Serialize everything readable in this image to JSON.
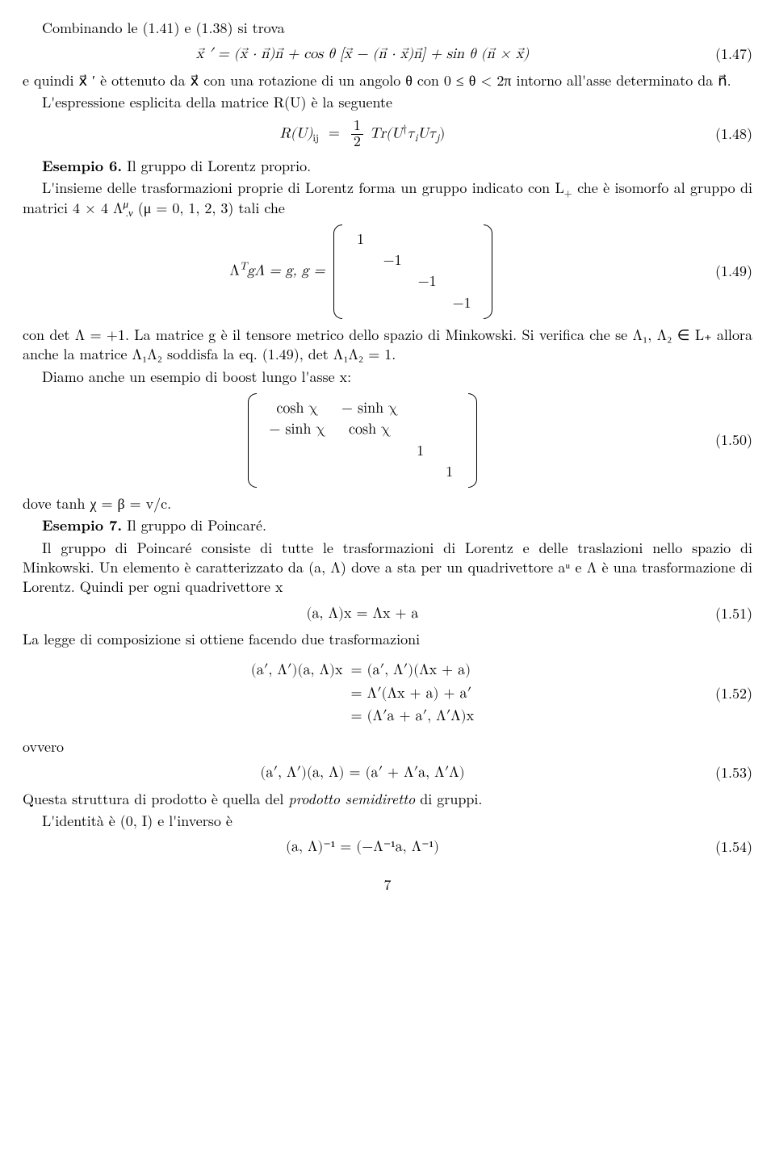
{
  "p1": "Combinando le (1.41) e (1.38) si trova",
  "eq147": "x⃗ ′ = (x⃗ · n⃗)n⃗ + cos θ [x⃗ − (n⃗ · x⃗)n⃗] + sin θ (n⃗ × x⃗)",
  "eq147n": "(1.47)",
  "p2": "e quindi x⃗ ′ è ottenuto da x⃗ con una rotazione di un angolo θ con 0 ≤ θ < 2π intorno all'asse determinato da n⃗.",
  "p3": "L'espressione esplicita della matrice R(U) è la seguente",
  "eq148_lhs": "R(U)",
  "eq148_sub": "ij",
  "eq148_rhs_a": "Tr(U",
  "eq148_rhs_b": "τ",
  "eq148_rhs_c": "Uτ",
  "eq148_frac_num": "1",
  "eq148_frac_den": "2",
  "eq148n": "(1.48)",
  "es6_label": "Esempio 6.",
  "es6_text": " Il gruppo di Lorentz proprio.",
  "p4a": "L'insieme delle trasformazioni proprie di Lorentz forma un gruppo indicato con L",
  "p4b": " che è isomorfo al gruppo di matrici 4 × 4 Λ",
  "p4c": " (μ = 0, 1, 2, 3) tali che",
  "eq149_pre": "Λ",
  "eq149_pre2": "gΛ = g,   g = ",
  "eq149n": "(1.49)",
  "g_diag": [
    "1",
    "−1",
    "−1",
    "−1"
  ],
  "p5": "con det Λ = +1. La matrice g è il tensore metrico dello spazio di Minkowski. Si verifica che se Λ₁, Λ₂ ∈ L₊ allora anche la matrice Λ₁Λ₂ soddisfa la eq. (1.49), det Λ₁Λ₂ = 1.",
  "p6": "Diamo anche un esempio di boost lungo l'asse x:",
  "boost": [
    [
      "cosh χ",
      "− sinh χ",
      "",
      ""
    ],
    [
      "− sinh χ",
      "cosh χ",
      "",
      ""
    ],
    [
      "",
      "",
      "1",
      ""
    ],
    [
      "",
      "",
      "",
      "1"
    ]
  ],
  "eq150n": "(1.50)",
  "p7": "dove tanh χ = β = v/c.",
  "es7_label": "Esempio 7.",
  "es7_text": " Il gruppo di Poincaré.",
  "p8": "Il gruppo di Poincaré consiste di tutte le trasformazioni di Lorentz e delle traslazioni nello spazio di Minkowski. Un elemento è caratterizzato da (a, Λ) dove a sta per un quadrivettore aᵘ e Λ è una trasformazione di Lorentz. Quindi per ogni quadrivettore x",
  "eq151": "(a, Λ)x = Λx + a",
  "eq151n": "(1.51)",
  "p9": "La legge di composizione si ottiene facendo due trasformazioni",
  "align1_l": "(a′, Λ′)(a, Λ)x",
  "align1_r": "(a′, Λ′)(Λx + a)",
  "align2_r": "Λ′(Λx + a) + a′",
  "align3_r": "(Λ′a + a′, Λ′Λ)x",
  "eq152n": "(1.52)",
  "p10": "ovvero",
  "eq153": "(a′, Λ′)(a, Λ) = (a′ + Λ′a, Λ′Λ)",
  "eq153n": "(1.53)",
  "p11a": "Questa struttura di prodotto è quella del ",
  "p11b": "prodotto semidiretto",
  "p11c": " di gruppi.",
  "p12": "L'identità è (0, I) e l'inverso è",
  "eq154": "(a, Λ)⁻¹ = (−Λ⁻¹a, Λ⁻¹)",
  "eq154n": "(1.54)",
  "pagenum": "7"
}
